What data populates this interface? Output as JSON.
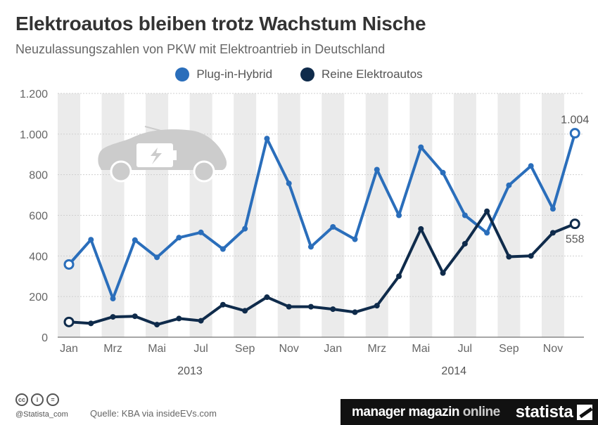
{
  "title": "Elektroautos bleiben trotz Wachstum Nische",
  "subtitle": "Neuzulassungszahlen von PKW mit Elektroantrieb in Deutschland",
  "chart_data": {
    "type": "line",
    "title": "Elektroautos bleiben trotz Wachstum Nische",
    "subtitle": "Neuzulassungszahlen von PKW mit Elektroantrieb in Deutschland",
    "x_tick_labels": [
      "Jan",
      "Mrz",
      "Mai",
      "Jul",
      "Sep",
      "Nov",
      "Jan",
      "Mrz",
      "Mai",
      "Jul",
      "Sep",
      "Nov"
    ],
    "year_labels": [
      "2013",
      "2014"
    ],
    "categories": [
      "Jan 2013",
      "Feb 2013",
      "Mrz 2013",
      "Apr 2013",
      "Mai 2013",
      "Jun 2013",
      "Jul 2013",
      "Aug 2013",
      "Sep 2013",
      "Okt 2013",
      "Nov 2013",
      "Dez 2013",
      "Jan 2014",
      "Feb 2014",
      "Mrz 2014",
      "Apr 2014",
      "Mai 2014",
      "Jun 2014",
      "Jul 2014",
      "Aug 2014",
      "Sep 2014",
      "Okt 2014",
      "Nov 2014",
      "Dez 2014"
    ],
    "series": [
      {
        "name": "Plug-in-Hybrid",
        "color": "#2a6ebb",
        "values": [
          358,
          480,
          190,
          478,
          393,
          490,
          516,
          434,
          534,
          978,
          757,
          445,
          543,
          482,
          825,
          600,
          935,
          810,
          600,
          514,
          748,
          843,
          632,
          1004
        ]
      },
      {
        "name": "Reine Elektroautos",
        "color": "#0f2b4b",
        "values": [
          75,
          68,
          100,
          103,
          62,
          92,
          81,
          160,
          130,
          197,
          150,
          150,
          138,
          123,
          155,
          300,
          533,
          316,
          460,
          620,
          396,
          400,
          514,
          558
        ]
      }
    ],
    "ylim": [
      0,
      1200
    ],
    "yticks": [
      0,
      200,
      400,
      600,
      800,
      1000,
      1200
    ],
    "ytick_labels": [
      "0",
      "200",
      "400",
      "600",
      "800",
      "1.000",
      "1.200"
    ],
    "data_labels": [
      {
        "series": 0,
        "index": 23,
        "text": "1.004",
        "position": "above"
      },
      {
        "series": 1,
        "index": 23,
        "text": "558",
        "position": "below"
      }
    ],
    "grid": "alternating vertical bands",
    "legend": "top-center"
  },
  "footer": {
    "handle": "@Statista_com",
    "source": "Quelle: KBA via insideEVs.com",
    "brand_mm": "manager magazin",
    "brand_online": "online",
    "brand_statista": "statista",
    "cc_icons": [
      "cc",
      "i",
      "="
    ]
  }
}
